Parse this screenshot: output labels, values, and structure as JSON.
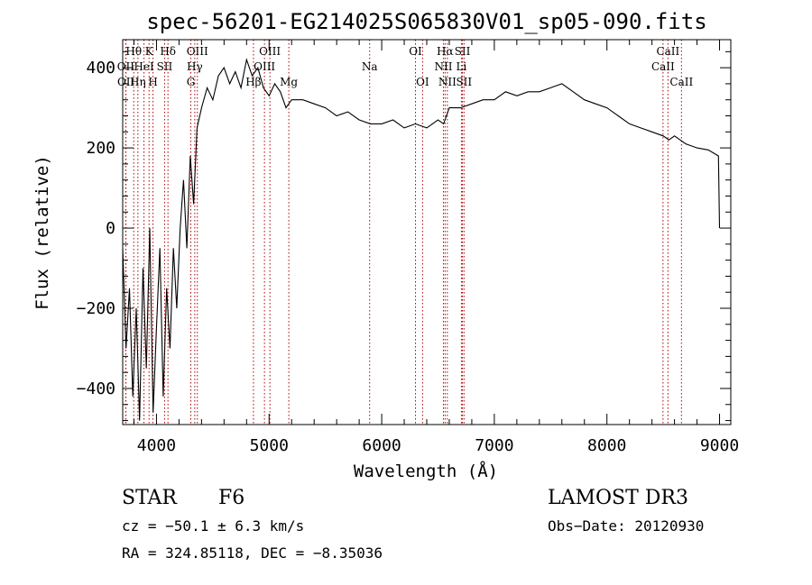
{
  "chart_data": {
    "type": "line",
    "title": "spec-56201-EG214025S065830V01_sp05-090.fits",
    "xlabel": "Wavelength (Å)",
    "ylabel": "Flux (relative)",
    "xlim": [
      3700,
      9100
    ],
    "ylim": [
      -490,
      470
    ],
    "x_ticks": [
      4000,
      5000,
      6000,
      7000,
      8000,
      9000
    ],
    "y_ticks": [
      -400,
      -200,
      0,
      200,
      400
    ],
    "x_tick_labels": [
      "4000",
      "5000",
      "6000",
      "7000",
      "8000",
      "9000"
    ],
    "y_tick_labels": [
      "−400",
      "−200",
      "0",
      "200",
      "400"
    ],
    "series": [
      {
        "name": "flux",
        "x": [
          3700,
          3730,
          3760,
          3790,
          3820,
          3850,
          3880,
          3910,
          3940,
          3970,
          4000,
          4030,
          4060,
          4090,
          4120,
          4150,
          4180,
          4210,
          4240,
          4270,
          4300,
          4330,
          4360,
          4400,
          4450,
          4500,
          4550,
          4600,
          4650,
          4700,
          4750,
          4800,
          4850,
          4900,
          4950,
          5000,
          5050,
          5100,
          5150,
          5200,
          5300,
          5400,
          5500,
          5600,
          5700,
          5800,
          5900,
          6000,
          6100,
          6200,
          6300,
          6400,
          6500,
          6550,
          6600,
          6700,
          6800,
          6900,
          7000,
          7100,
          7200,
          7300,
          7400,
          7500,
          7600,
          7700,
          7800,
          7900,
          8000,
          8100,
          8200,
          8300,
          8400,
          8500,
          8550,
          8600,
          8650,
          8700,
          8800,
          8900,
          8990,
          9000
        ],
        "y": [
          -50,
          -300,
          -150,
          -420,
          -200,
          -480,
          -100,
          -350,
          0,
          -460,
          -250,
          -50,
          -420,
          -150,
          -300,
          -50,
          -200,
          0,
          120,
          -50,
          180,
          60,
          250,
          300,
          350,
          320,
          380,
          400,
          360,
          390,
          350,
          420,
          380,
          400,
          350,
          330,
          360,
          340,
          300,
          320,
          320,
          310,
          300,
          280,
          290,
          270,
          260,
          260,
          270,
          250,
          260,
          250,
          270,
          260,
          300,
          300,
          310,
          320,
          320,
          340,
          330,
          340,
          340,
          350,
          360,
          340,
          320,
          310,
          300,
          280,
          260,
          250,
          240,
          230,
          220,
          230,
          220,
          210,
          200,
          195,
          180,
          0
        ],
        "color": "#000000"
      }
    ],
    "annotations": [
      {
        "label": "Hθ",
        "x": 3798,
        "row": 1
      },
      {
        "label": "K",
        "x": 3934,
        "row": 1
      },
      {
        "label": "Hδ",
        "x": 4102,
        "row": 1
      },
      {
        "label": "OIII",
        "x": 4363,
        "row": 1
      },
      {
        "label": "OIII",
        "x": 5007,
        "row": 1
      },
      {
        "label": "OI",
        "x": 6300,
        "row": 1
      },
      {
        "label": "Hα",
        "x": 6563,
        "row": 1
      },
      {
        "label": "SII",
        "x": 6717,
        "row": 1
      },
      {
        "label": "CaII",
        "x": 8542,
        "row": 1
      },
      {
        "label": "OII",
        "x": 3727,
        "row": 2
      },
      {
        "label": "HeI",
        "x": 3889,
        "row": 2
      },
      {
        "label": "SII",
        "x": 4072,
        "row": 2
      },
      {
        "label": "Hγ",
        "x": 4340,
        "row": 2
      },
      {
        "label": "OIII",
        "x": 4959,
        "row": 2
      },
      {
        "label": "Na",
        "x": 5893,
        "row": 2
      },
      {
        "label": "NII",
        "x": 6548,
        "row": 2
      },
      {
        "label": "Li",
        "x": 6708,
        "row": 2
      },
      {
        "label": "CaII",
        "x": 8498,
        "row": 2
      },
      {
        "label": "OII",
        "x": 3729,
        "row": 3
      },
      {
        "label": "Hη",
        "x": 3835,
        "row": 3
      },
      {
        "label": "H",
        "x": 3969,
        "row": 3
      },
      {
        "label": "G",
        "x": 4305,
        "row": 3
      },
      {
        "label": "Hβ",
        "x": 4861,
        "row": 3
      },
      {
        "label": "Mg",
        "x": 5175,
        "row": 3
      },
      {
        "label": "OI",
        "x": 6363,
        "row": 3
      },
      {
        "label": "NII",
        "x": 6583,
        "row": 3
      },
      {
        "label": "SII",
        "x": 6731,
        "row": 3
      },
      {
        "label": "CaII",
        "x": 8662,
        "row": 3
      }
    ],
    "line_color": "#b00000",
    "legend": "none",
    "grid": false
  },
  "info": {
    "object_class": "STAR",
    "subclass": "F6",
    "survey": "LAMOST DR3",
    "redshift_text": "cz = −50.1 ± 6.3 km/s",
    "obs_date_text": "Obs−Date: 20120930",
    "coords_text": "RA = 324.85118, DEC =  −8.35036"
  }
}
